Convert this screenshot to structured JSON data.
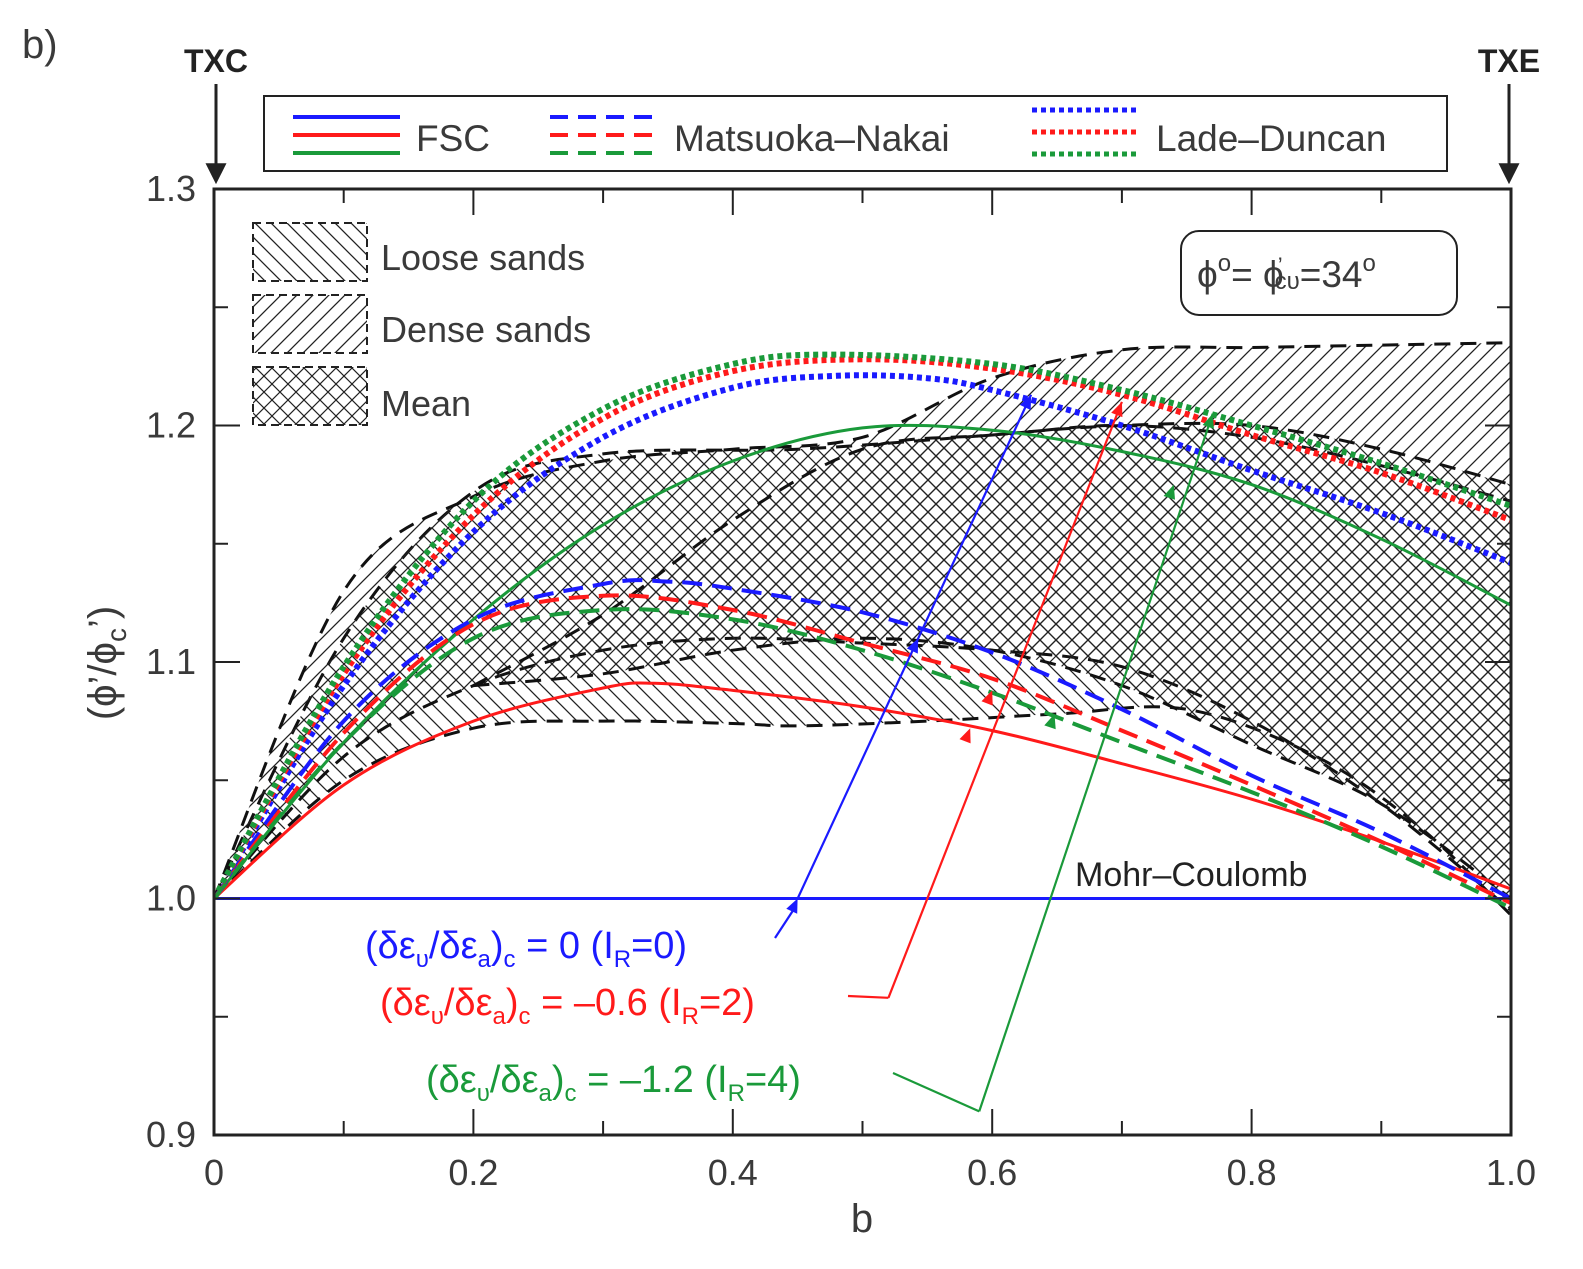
{
  "panel_label": "b)",
  "directions": {
    "left": "TXC",
    "right": "TXE"
  },
  "legend": {
    "fsc": "FSC",
    "mn": "Matsuoka–Nakai",
    "ld": "Lade–Duncan"
  },
  "hatch_legend": {
    "loose": "Loose sands",
    "dense": "Dense sands",
    "mean": "Mean"
  },
  "info_box": {
    "parts": [
      "ϕ",
      "o",
      "= ϕ",
      "’",
      "cυ",
      "=34",
      "o"
    ]
  },
  "mohr_label": "Mohr–Coulomb",
  "annotations": {
    "blue": {
      "color": "#1a1aff",
      "parts": [
        "(δε",
        "υ",
        "/δε",
        "a",
        ")",
        "c",
        " = 0 (I",
        "R",
        "=0)"
      ]
    },
    "red": {
      "color": "#ff1a1a",
      "parts": [
        "(δε",
        "υ",
        "/δε",
        "a",
        ")",
        "c",
        " = –0.6 (I",
        "R",
        "=2)"
      ]
    },
    "green": {
      "color": "#1a9a3a",
      "parts": [
        "(δε",
        "υ",
        "/δε",
        "a",
        ")",
        "c",
        " = –1.2 (I",
        "R",
        "=4)"
      ]
    }
  },
  "axis_labels": {
    "x": "b",
    "y_parts": [
      "(ϕ’/ϕ",
      "c",
      "’)"
    ]
  },
  "chart_data": {
    "type": "line",
    "xlim": [
      0,
      1.0
    ],
    "ylim": [
      0.9,
      1.3
    ],
    "xticks": [
      0,
      0.2,
      0.4,
      0.6,
      0.8,
      1.0
    ],
    "xtick_labels": [
      "0",
      "0.2",
      "0.4",
      "0.6",
      "0.8",
      "1.0"
    ],
    "yticks": [
      0.9,
      1.0,
      1.1,
      1.2,
      1.3
    ],
    "ytick_labels": [
      "0.9",
      "1.0",
      "1.1",
      "1.2",
      "1.3"
    ],
    "colors": {
      "blue": "#1a1aff",
      "red": "#ff1a1a",
      "green": "#1a9a3a"
    },
    "series": [
      {
        "name": "FSC (δευ/δεa)c = 0",
        "model": "FSC",
        "color": "blue",
        "style": "solid",
        "points": [
          [
            0,
            1.0
          ],
          [
            1.0,
            1.0
          ]
        ]
      },
      {
        "name": "FSC (δευ/δεa)c = -0.6",
        "model": "FSC",
        "color": "red",
        "style": "solid",
        "points": [
          [
            0,
            1.0
          ],
          [
            0.1,
            1.048
          ],
          [
            0.2,
            1.075
          ],
          [
            0.3,
            1.089
          ],
          [
            0.34,
            1.091
          ],
          [
            0.4,
            1.088
          ],
          [
            0.5,
            1.081
          ],
          [
            0.6,
            1.071
          ],
          [
            0.7,
            1.057
          ],
          [
            0.8,
            1.042
          ],
          [
            0.9,
            1.024
          ],
          [
            1.0,
            1.004
          ]
        ]
      },
      {
        "name": "FSC (δευ/δεa)c = -1.2",
        "model": "FSC",
        "color": "green",
        "style": "solid",
        "points": [
          [
            0,
            1.0
          ],
          [
            0.1,
            1.066
          ],
          [
            0.2,
            1.118
          ],
          [
            0.3,
            1.158
          ],
          [
            0.4,
            1.185
          ],
          [
            0.5,
            1.199
          ],
          [
            0.6,
            1.198
          ],
          [
            0.7,
            1.189
          ],
          [
            0.8,
            1.175
          ],
          [
            0.9,
            1.152
          ],
          [
            1.0,
            1.124
          ]
        ]
      },
      {
        "name": "Matsuoka-Nakai (δευ/δεa)c = 0",
        "model": "Matsuoka–Nakai",
        "color": "blue",
        "style": "dashed",
        "points": [
          [
            0,
            1.0
          ],
          [
            0.1,
            1.075
          ],
          [
            0.2,
            1.118
          ],
          [
            0.3,
            1.133
          ],
          [
            0.35,
            1.134
          ],
          [
            0.4,
            1.131
          ],
          [
            0.5,
            1.121
          ],
          [
            0.6,
            1.104
          ],
          [
            0.7,
            1.08
          ],
          [
            0.8,
            1.052
          ],
          [
            0.9,
            1.028
          ],
          [
            1.0,
            1.0
          ]
        ]
      },
      {
        "name": "Matsuoka-Nakai (δευ/δεa)c = -0.6",
        "model": "Matsuoka–Nakai",
        "color": "red",
        "style": "dashed",
        "points": [
          [
            0,
            1.0
          ],
          [
            0.1,
            1.07
          ],
          [
            0.2,
            1.116
          ],
          [
            0.3,
            1.128
          ],
          [
            0.4,
            1.122
          ],
          [
            0.5,
            1.108
          ],
          [
            0.6,
            1.093
          ],
          [
            0.7,
            1.071
          ],
          [
            0.8,
            1.048
          ],
          [
            0.9,
            1.024
          ],
          [
            1.0,
            0.998
          ]
        ]
      },
      {
        "name": "Matsuoka-Nakai (δευ/δεa)c = -1.2",
        "model": "Matsuoka–Nakai",
        "color": "green",
        "style": "dashed",
        "points": [
          [
            0,
            1.0
          ],
          [
            0.1,
            1.066
          ],
          [
            0.2,
            1.11
          ],
          [
            0.3,
            1.122
          ],
          [
            0.4,
            1.118
          ],
          [
            0.5,
            1.105
          ],
          [
            0.6,
            1.087
          ],
          [
            0.7,
            1.066
          ],
          [
            0.8,
            1.045
          ],
          [
            0.9,
            1.022
          ],
          [
            1.0,
            0.996
          ]
        ]
      },
      {
        "name": "Lade-Duncan (δευ/δεa)c = 0",
        "model": "Lade–Duncan",
        "color": "blue",
        "style": "dotted",
        "points": [
          [
            0,
            1.0
          ],
          [
            0.1,
            1.09
          ],
          [
            0.2,
            1.155
          ],
          [
            0.3,
            1.195
          ],
          [
            0.4,
            1.216
          ],
          [
            0.48,
            1.221
          ],
          [
            0.55,
            1.22
          ],
          [
            0.6,
            1.215
          ],
          [
            0.7,
            1.2
          ],
          [
            0.8,
            1.181
          ],
          [
            0.9,
            1.163
          ],
          [
            1.0,
            1.142
          ]
        ]
      },
      {
        "name": "Lade-Duncan (δευ/δεa)c = -0.6",
        "model": "Lade–Duncan",
        "color": "red",
        "style": "dotted",
        "points": [
          [
            0,
            1.0
          ],
          [
            0.1,
            1.095
          ],
          [
            0.2,
            1.162
          ],
          [
            0.3,
            1.203
          ],
          [
            0.4,
            1.223
          ],
          [
            0.5,
            1.228
          ],
          [
            0.6,
            1.224
          ],
          [
            0.7,
            1.213
          ],
          [
            0.8,
            1.196
          ],
          [
            0.9,
            1.18
          ],
          [
            1.0,
            1.16
          ]
        ]
      },
      {
        "name": "Lade-Duncan (δευ/δεa)c = -1.2",
        "model": "Lade–Duncan",
        "color": "green",
        "style": "dotted",
        "points": [
          [
            0,
            1.0
          ],
          [
            0.1,
            1.098
          ],
          [
            0.2,
            1.168
          ],
          [
            0.3,
            1.207
          ],
          [
            0.4,
            1.226
          ],
          [
            0.48,
            1.23
          ],
          [
            0.6,
            1.226
          ],
          [
            0.7,
            1.215
          ],
          [
            0.8,
            1.2
          ],
          [
            0.9,
            1.184
          ],
          [
            1.0,
            1.166
          ]
        ]
      }
    ],
    "regions": [
      {
        "name": "Loose sands",
        "pattern": "backslash",
        "upper": [
          [
            0,
            1.0
          ],
          [
            0.1,
            1.11
          ],
          [
            0.2,
            1.172
          ],
          [
            0.3,
            1.188
          ],
          [
            0.45,
            1.19
          ],
          [
            0.6,
            1.196
          ],
          [
            0.7,
            1.2
          ],
          [
            0.8,
            1.195
          ],
          [
            0.9,
            1.183
          ],
          [
            1.0,
            1.168
          ]
        ],
        "lower": [
          [
            0,
            1.0
          ],
          [
            0.1,
            1.05
          ],
          [
            0.2,
            1.072
          ],
          [
            0.3,
            1.075
          ],
          [
            0.4,
            1.074
          ],
          [
            0.45,
            1.073
          ],
          [
            0.55,
            1.075
          ],
          [
            0.65,
            1.078
          ],
          [
            0.75,
            1.08
          ],
          [
            0.85,
            1.06
          ],
          [
            0.93,
            1.03
          ],
          [
            1.0,
            0.993
          ]
        ]
      },
      {
        "name": "Dense sands",
        "pattern": "slash",
        "upper": [
          [
            0,
            1.0
          ],
          [
            0.1,
            1.13
          ],
          [
            0.2,
            1.17
          ],
          [
            0.3,
            1.185
          ],
          [
            0.4,
            1.19
          ],
          [
            0.5,
            1.195
          ],
          [
            0.6,
            1.22
          ],
          [
            0.7,
            1.232
          ],
          [
            0.8,
            1.233
          ],
          [
            0.9,
            1.234
          ],
          [
            1.0,
            1.235
          ]
        ],
        "lower": [
          [
            0,
            1.0
          ],
          [
            0.1,
            1.06
          ],
          [
            0.2,
            1.09
          ],
          [
            0.3,
            1.105
          ],
          [
            0.4,
            1.11
          ],
          [
            0.5,
            1.108
          ],
          [
            0.6,
            1.105
          ],
          [
            0.7,
            1.098
          ],
          [
            0.8,
            1.075
          ],
          [
            0.9,
            1.04
          ],
          [
            1.0,
            0.995
          ]
        ]
      },
      {
        "name": "Mean",
        "pattern": "cross",
        "upper": [
          [
            0.2,
            1.09
          ],
          [
            0.3,
            1.12
          ],
          [
            0.4,
            1.16
          ],
          [
            0.5,
            1.19
          ],
          [
            0.6,
            1.196
          ],
          [
            0.7,
            1.2
          ],
          [
            0.8,
            1.2
          ],
          [
            0.9,
            1.19
          ],
          [
            1.0,
            1.175
          ]
        ],
        "lower": [
          [
            0.2,
            1.09
          ],
          [
            0.3,
            1.095
          ],
          [
            0.4,
            1.105
          ],
          [
            0.5,
            1.11
          ],
          [
            0.6,
            1.105
          ],
          [
            0.7,
            1.09
          ],
          [
            0.8,
            1.065
          ],
          [
            0.9,
            1.04
          ],
          [
            1.0,
            1.0
          ]
        ]
      }
    ],
    "pointer_arrows": [
      {
        "color": "blue",
        "from": [
          0.45,
          1.0
        ],
        "to": [
          0.63,
          1.213
        ],
        "marks": [
          [
            0.45,
            1.0
          ],
          [
            0.543,
            1.11
          ],
          [
            0.63,
            1.213
          ]
        ]
      },
      {
        "color": "red",
        "from": [
          0.52,
          0.958
        ],
        "to": [
          0.7,
          1.21
        ],
        "marks": [
          [
            0.583,
            1.072
          ],
          [
            0.6,
            1.088
          ],
          [
            0.7,
            1.21
          ]
        ]
      },
      {
        "color": "green",
        "from": [
          0.59,
          0.91
        ],
        "to": [
          0.77,
          1.205
        ],
        "marks": [
          [
            0.648,
            1.078
          ],
          [
            0.74,
            1.175
          ],
          [
            0.77,
            1.205
          ]
        ]
      }
    ]
  }
}
